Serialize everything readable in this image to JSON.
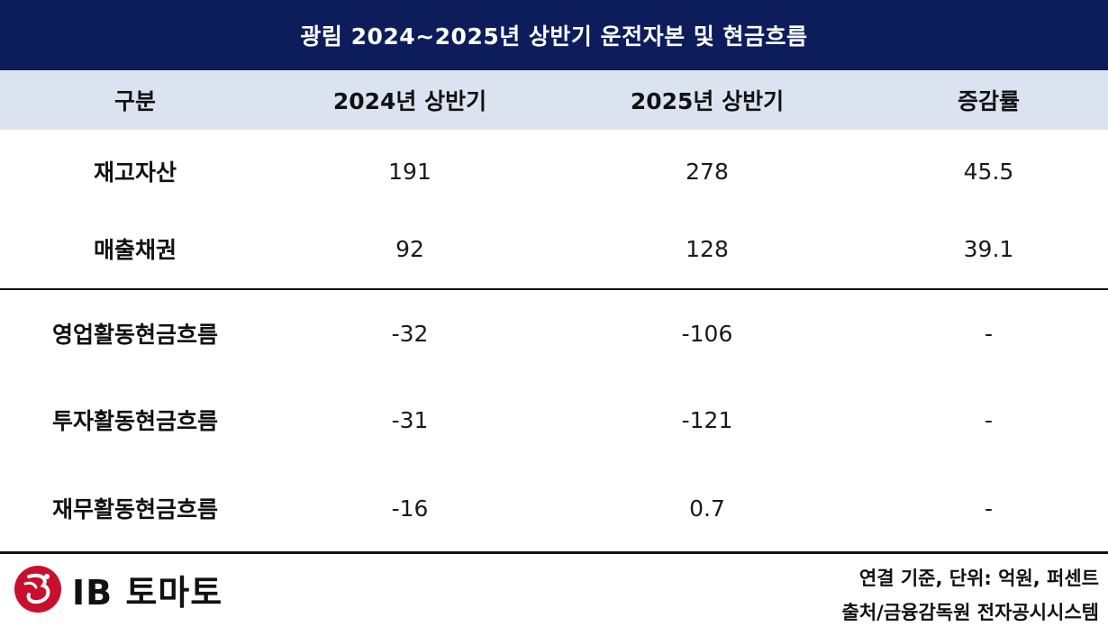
{
  "title": "광림 2024~2025년 상반기 운전자본 및  현금흐름",
  "headers": [
    "구분",
    "2024년 상반기",
    "2025년 상반기",
    "증감률"
  ],
  "rows": [
    {
      "label": "재고자산",
      "h1_2024": "191",
      "h1_2025": "278",
      "change": "45.5"
    },
    {
      "label": "매출채권",
      "h1_2024": "92",
      "h1_2025": "128",
      "change": "39.1"
    },
    {
      "label": "영업활동현금흐름",
      "h1_2024": "-32",
      "h1_2025": "-106",
      "change": "-"
    },
    {
      "label": "투자활동현금흐름",
      "h1_2024": "-31",
      "h1_2025": "-121",
      "change": "-"
    },
    {
      "label": "재무활동현금흐름",
      "h1_2024": "-16",
      "h1_2025": "0.7",
      "change": "-"
    }
  ],
  "footer": {
    "logo_text": "IB 토마토",
    "unit_note": "연결 기준, 단위: 억원, 퍼센트",
    "source_note": "출처/금융감독원 전자공시시스템"
  },
  "colors": {
    "title_bg": "#0d1d5c",
    "header_bg": "#dce3f0",
    "logo_red": "#c8102e"
  }
}
